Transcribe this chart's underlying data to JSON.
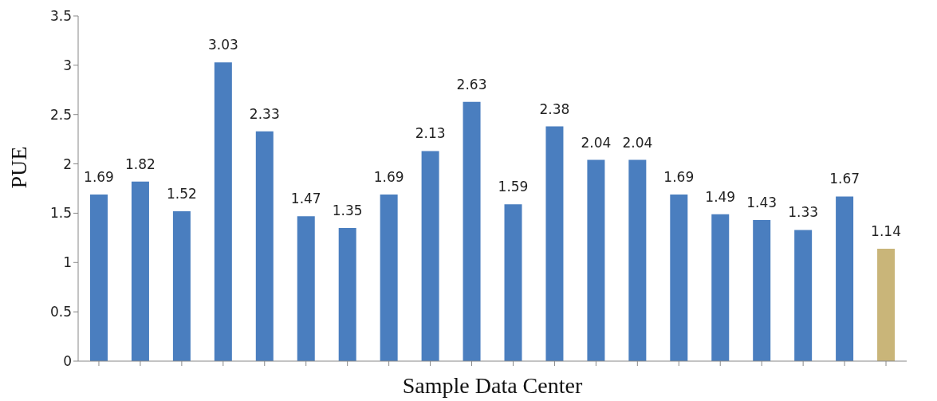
{
  "chart_data": {
    "type": "bar",
    "xlabel": "Sample Data Center",
    "ylabel": "PUE",
    "categories": [
      null,
      null,
      null,
      null,
      null,
      null,
      null,
      null,
      null,
      null,
      null,
      null,
      null,
      null,
      null,
      null,
      null,
      null,
      null,
      null
    ],
    "values": [
      1.69,
      1.82,
      1.52,
      3.03,
      2.33,
      1.47,
      1.35,
      1.69,
      2.13,
      2.63,
      1.59,
      2.38,
      2.04,
      2.04,
      1.69,
      1.49,
      1.43,
      1.33,
      1.67,
      1.14
    ],
    "colors": [
      "#4a7ebf",
      "#4a7ebf",
      "#4a7ebf",
      "#4a7ebf",
      "#4a7ebf",
      "#4a7ebf",
      "#4a7ebf",
      "#4a7ebf",
      "#4a7ebf",
      "#4a7ebf",
      "#4a7ebf",
      "#4a7ebf",
      "#4a7ebf",
      "#4a7ebf",
      "#4a7ebf",
      "#4a7ebf",
      "#4a7ebf",
      "#4a7ebf",
      "#4a7ebf",
      "#c9b579"
    ],
    "ylim": [
      0,
      3.5
    ],
    "yticks": [
      0,
      0.5,
      1,
      1.5,
      2,
      2.5,
      3,
      3.5
    ],
    "grid": false,
    "data_labels": true
  }
}
